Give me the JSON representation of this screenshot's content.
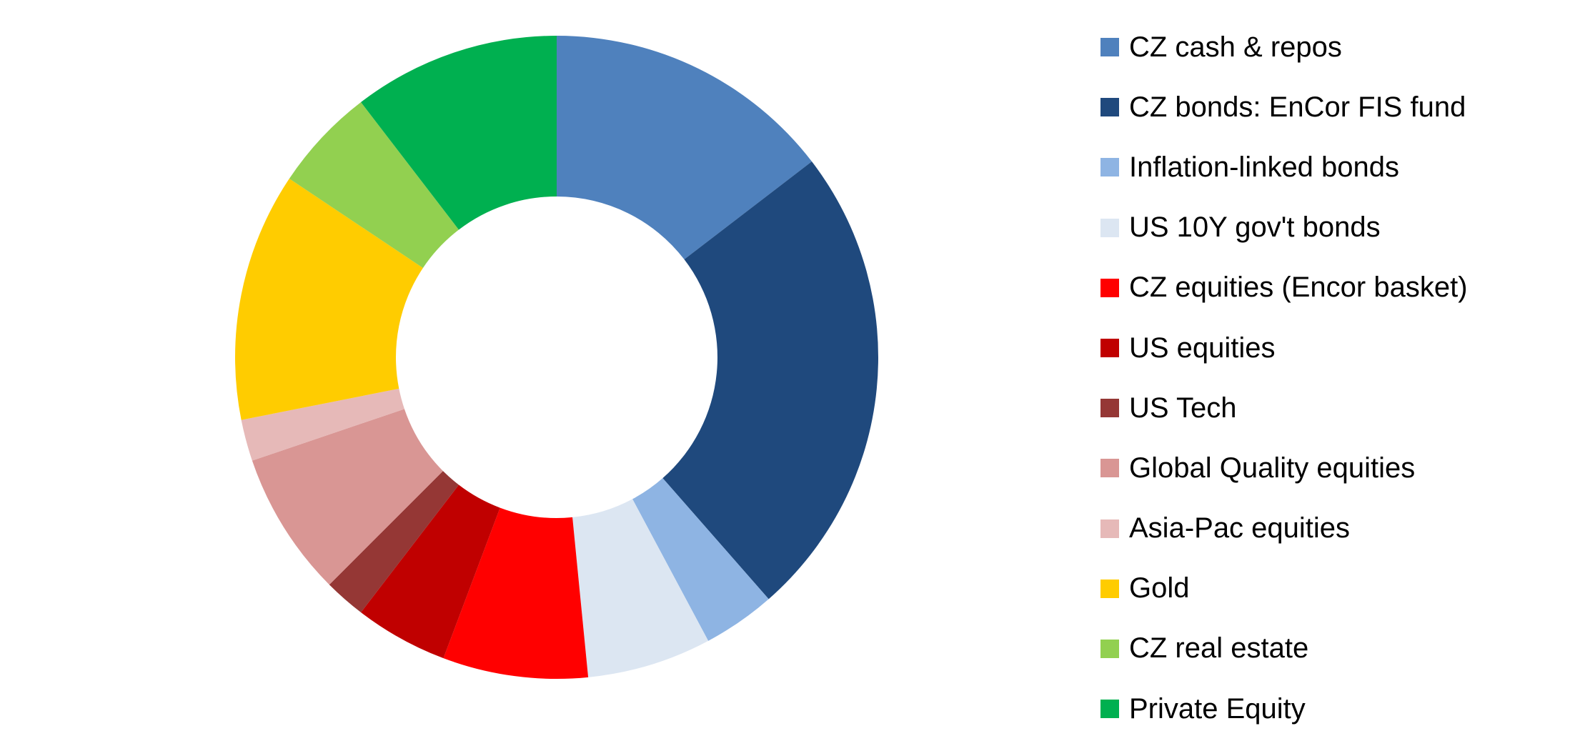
{
  "chart_data": {
    "type": "pie",
    "variant": "donut",
    "title": "",
    "legend_position": "right",
    "unit": "%",
    "slices": [
      {
        "label": "CZ cash & repos",
        "value": 14,
        "color": "#4F81BD"
      },
      {
        "label": "CZ bonds: EnCor FIS fund",
        "value": 23,
        "color": "#1F497D"
      },
      {
        "label": "Inflation-linked bonds",
        "value": 3.5,
        "color": "#8EB4E3"
      },
      {
        "label": "US 10Y gov't bonds",
        "value": 6,
        "color": "#DCE6F2"
      },
      {
        "label": "CZ equities (Encor basket)",
        "value": 7,
        "color": "#FF0000"
      },
      {
        "label": "US equities",
        "value": 4.5,
        "color": "#C00000"
      },
      {
        "label": "US Tech",
        "value": 2,
        "color": "#953735"
      },
      {
        "label": "Global Quality equities",
        "value": 7,
        "color": "#D99694"
      },
      {
        "label": "Asia-Pac equities",
        "value": 2,
        "color": "#E6B9B8"
      },
      {
        "label": "Gold",
        "value": 12,
        "color": "#FFCC00"
      },
      {
        "label": "CZ real estate",
        "value": 5,
        "color": "#92D050"
      },
      {
        "label": "Private Equity",
        "value": 10,
        "color": "#00B050"
      }
    ]
  }
}
